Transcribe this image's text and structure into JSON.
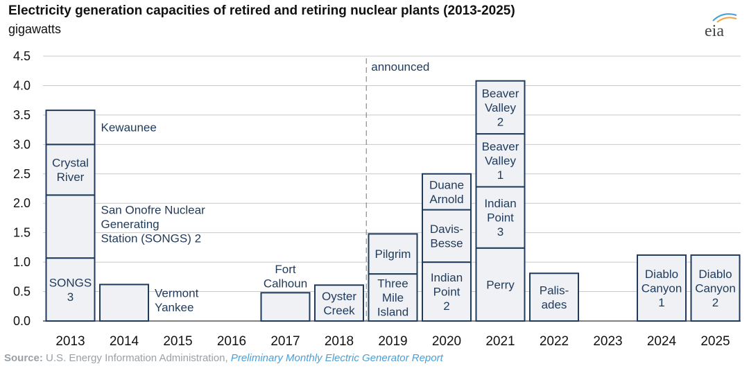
{
  "header": {
    "title": "Electricity generation capacities of retired and retiring nuclear plants (2013-2025)",
    "unit": "gigawatts",
    "logo_text": "eia"
  },
  "footer": {
    "source_label": "Source:",
    "source_text": "U.S. Energy Information Administration,",
    "source_publication": "Preliminary Monthly Electric Generator Report"
  },
  "colors": {
    "bar_fill": "#eff1f4",
    "bar_stroke": "#1f3a5a",
    "gridline": "#c8c8c8",
    "divider": "#8a8a8a",
    "logo_arc": "#4a9fd8",
    "logo_arc2": "#f2a33a"
  },
  "chart_data": {
    "type": "bar",
    "stacked": true,
    "ylim": [
      0,
      4.5
    ],
    "yticks": [
      "0.0",
      "0.5",
      "1.0",
      "1.5",
      "2.0",
      "2.5",
      "3.0",
      "3.5",
      "4.0",
      "4.5"
    ],
    "categories": [
      "2013",
      "2014",
      "2015",
      "2016",
      "2017",
      "2018",
      "2019",
      "2020",
      "2021",
      "2022",
      "2023",
      "2024",
      "2025"
    ],
    "divider": {
      "after_category": "2018",
      "label": "announced"
    },
    "segments": [
      {
        "category": "2013",
        "value": 1.07,
        "lines": [
          "SONGS",
          "3"
        ]
      },
      {
        "category": "2013",
        "value": 1.07,
        "lines": [
          "San Onofre Nuclear",
          "Generating",
          "Station (SONGS) 2"
        ],
        "label_outside": true
      },
      {
        "category": "2013",
        "value": 0.86,
        "lines": [
          "Crystal",
          "River"
        ]
      },
      {
        "category": "2013",
        "value": 0.58,
        "lines": [
          "Kewaunee"
        ],
        "label_outside": true
      },
      {
        "category": "2014",
        "value": 0.62,
        "lines": [
          "Vermont",
          "Yankee"
        ],
        "label_outside": true
      },
      {
        "category": "2017",
        "value": 0.48,
        "lines": [
          "Fort",
          "Calhoun"
        ],
        "label_above": true
      },
      {
        "category": "2018",
        "value": 0.61,
        "lines": [
          "Oyster",
          "Creek"
        ]
      },
      {
        "category": "2019",
        "value": 0.8,
        "lines": [
          "Three",
          "Mile",
          "Island"
        ]
      },
      {
        "category": "2019",
        "value": 0.68,
        "lines": [
          "Pilgrim"
        ]
      },
      {
        "category": "2020",
        "value": 1.0,
        "lines": [
          "Indian",
          "Point",
          "2"
        ]
      },
      {
        "category": "2020",
        "value": 0.89,
        "lines": [
          "Davis-",
          "Besse"
        ]
      },
      {
        "category": "2020",
        "value": 0.61,
        "lines": [
          "Duane",
          "Arnold"
        ]
      },
      {
        "category": "2021",
        "value": 1.24,
        "lines": [
          "Perry"
        ]
      },
      {
        "category": "2021",
        "value": 1.04,
        "lines": [
          "Indian",
          "Point",
          "3"
        ]
      },
      {
        "category": "2021",
        "value": 0.9,
        "lines": [
          "Beaver",
          "Valley",
          "1"
        ]
      },
      {
        "category": "2021",
        "value": 0.9,
        "lines": [
          "Beaver",
          "Valley",
          "2"
        ]
      },
      {
        "category": "2022",
        "value": 0.81,
        "lines": [
          "Palis-",
          "ades"
        ]
      },
      {
        "category": "2024",
        "value": 1.12,
        "lines": [
          "Diablo",
          "Canyon",
          "1"
        ]
      },
      {
        "category": "2025",
        "value": 1.12,
        "lines": [
          "Diablo",
          "Canyon",
          "2"
        ]
      }
    ]
  }
}
